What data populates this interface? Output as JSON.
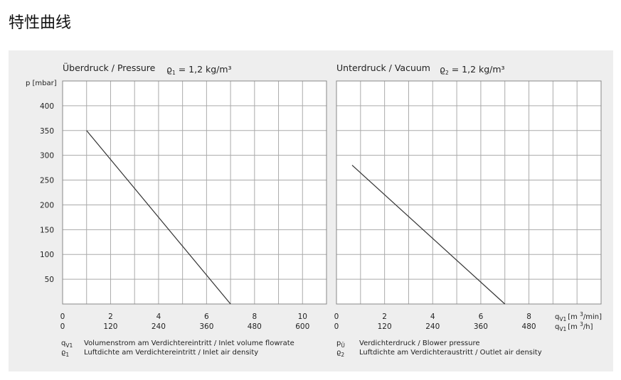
{
  "page": {
    "title": "特性曲线"
  },
  "chart_data": [
    {
      "type": "line",
      "title": "Überdruck / Pressure",
      "density_symbol": "ϱ",
      "density_sub": "1",
      "density_value": " = 1,2 kg/m³",
      "ylabel": "p [mbar]",
      "ylim": [
        0,
        450
      ],
      "yticks": [
        50,
        100,
        150,
        200,
        250,
        300,
        350,
        400
      ],
      "xlim": [
        0,
        11
      ],
      "xticks_min": [
        0,
        2,
        4,
        6,
        8,
        10
      ],
      "xticks_h": [
        0,
        120,
        240,
        360,
        480,
        600
      ],
      "grid": true,
      "series": [
        {
          "x": [
            1,
            7
          ],
          "y": [
            350,
            0
          ]
        }
      ]
    },
    {
      "type": "line",
      "title": "Unterdruck / Vacuum",
      "density_symbol": "ϱ",
      "density_sub": "2",
      "density_value": " = 1,2 kg/m³",
      "ylabel": "",
      "ylim": [
        0,
        450
      ],
      "yticks": [
        50,
        100,
        150,
        200,
        250,
        300,
        350,
        400
      ],
      "xlim": [
        0,
        11
      ],
      "xticks_min": [
        0,
        2,
        4,
        6,
        8
      ],
      "xticks_h": [
        0,
        120,
        240,
        360,
        480
      ],
      "grid": true,
      "series": [
        {
          "x": [
            0.65,
            7
          ],
          "y": [
            280,
            0
          ]
        }
      ]
    }
  ],
  "units": {
    "q_sym": "q",
    "q_sub": "V1",
    "min_unit_a": "[m ",
    "min_unit_sup": "3",
    "min_unit_b": "/min]",
    "h_unit_a": "[m ",
    "h_unit_sup": "3",
    "h_unit_b": "/h]"
  },
  "legend": [
    {
      "symbol": "q",
      "sub": "V1",
      "text": "Volumenstrom am Verdichtereintritt / Inlet volume flowrate"
    },
    {
      "symbol": "ϱ",
      "sub": "1",
      "text": "Luftdichte am Verdichtereintritt / Inlet air density"
    },
    {
      "symbol": "p",
      "sub": "Ü",
      "text": "Verdichterdruck / Blower pressure"
    },
    {
      "symbol": "ϱ",
      "sub": "2",
      "text": "Luftdichte am Verdichteraustritt / Outlet air density"
    }
  ]
}
